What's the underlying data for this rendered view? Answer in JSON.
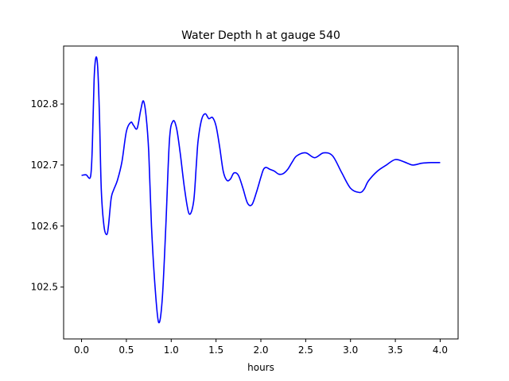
{
  "chart_data": {
    "type": "line",
    "title": "Water Depth h at gauge 540",
    "xlabel": "hours",
    "ylabel": "",
    "xlim": [
      -0.2,
      4.2
    ],
    "ylim": [
      102.415,
      102.895
    ],
    "xticks": [
      0.0,
      0.5,
      1.0,
      1.5,
      2.0,
      2.5,
      3.0,
      3.5,
      4.0
    ],
    "xtick_labels": [
      "0.0",
      "0.5",
      "1.0",
      "1.5",
      "2.0",
      "2.5",
      "3.0",
      "3.5",
      "4.0"
    ],
    "yticks": [
      102.5,
      102.6,
      102.7,
      102.8
    ],
    "ytick_labels": [
      "102.5",
      "102.6",
      "102.7",
      "102.8"
    ],
    "grid": false,
    "legend": "none",
    "series": [
      {
        "color": "#0000ff",
        "x": [
          0.0,
          0.05,
          0.1,
          0.12,
          0.14,
          0.16,
          0.18,
          0.2,
          0.22,
          0.25,
          0.28,
          0.3,
          0.33,
          0.36,
          0.4,
          0.45,
          0.5,
          0.55,
          0.58,
          0.62,
          0.66,
          0.69,
          0.72,
          0.75,
          0.78,
          0.82,
          0.86,
          0.9,
          0.94,
          0.98,
          1.02,
          1.06,
          1.1,
          1.15,
          1.2,
          1.25,
          1.28,
          1.3,
          1.34,
          1.38,
          1.42,
          1.46,
          1.5,
          1.54,
          1.58,
          1.62,
          1.66,
          1.7,
          1.75,
          1.8,
          1.85,
          1.9,
          1.95,
          2.0,
          2.03,
          2.06,
          2.1,
          2.15,
          2.2,
          2.25,
          2.3,
          2.35,
          2.4,
          2.5,
          2.6,
          2.7,
          2.8,
          2.9,
          3.0,
          3.1,
          3.15,
          3.2,
          3.3,
          3.4,
          3.5,
          3.6,
          3.65,
          3.7,
          3.8,
          3.9,
          4.0
        ],
        "y": [
          102.683,
          102.684,
          102.681,
          102.73,
          102.84,
          102.876,
          102.86,
          102.78,
          102.66,
          102.6,
          102.586,
          102.6,
          102.645,
          102.66,
          102.675,
          102.705,
          102.755,
          102.77,
          102.765,
          102.76,
          102.79,
          102.805,
          102.78,
          102.72,
          102.6,
          102.5,
          102.442,
          102.48,
          102.6,
          102.74,
          102.772,
          102.76,
          102.72,
          102.66,
          102.62,
          102.64,
          102.7,
          102.74,
          102.775,
          102.784,
          102.776,
          102.778,
          102.764,
          102.73,
          102.69,
          102.675,
          102.677,
          102.687,
          102.683,
          102.662,
          102.638,
          102.635,
          102.655,
          102.68,
          102.693,
          102.696,
          102.693,
          102.69,
          102.685,
          102.686,
          102.693,
          102.705,
          102.715,
          102.72,
          102.712,
          102.72,
          102.715,
          102.688,
          102.662,
          102.655,
          102.66,
          102.674,
          102.69,
          102.7,
          102.709,
          102.705,
          102.702,
          102.7,
          102.703,
          102.704,
          102.704
        ]
      }
    ]
  }
}
